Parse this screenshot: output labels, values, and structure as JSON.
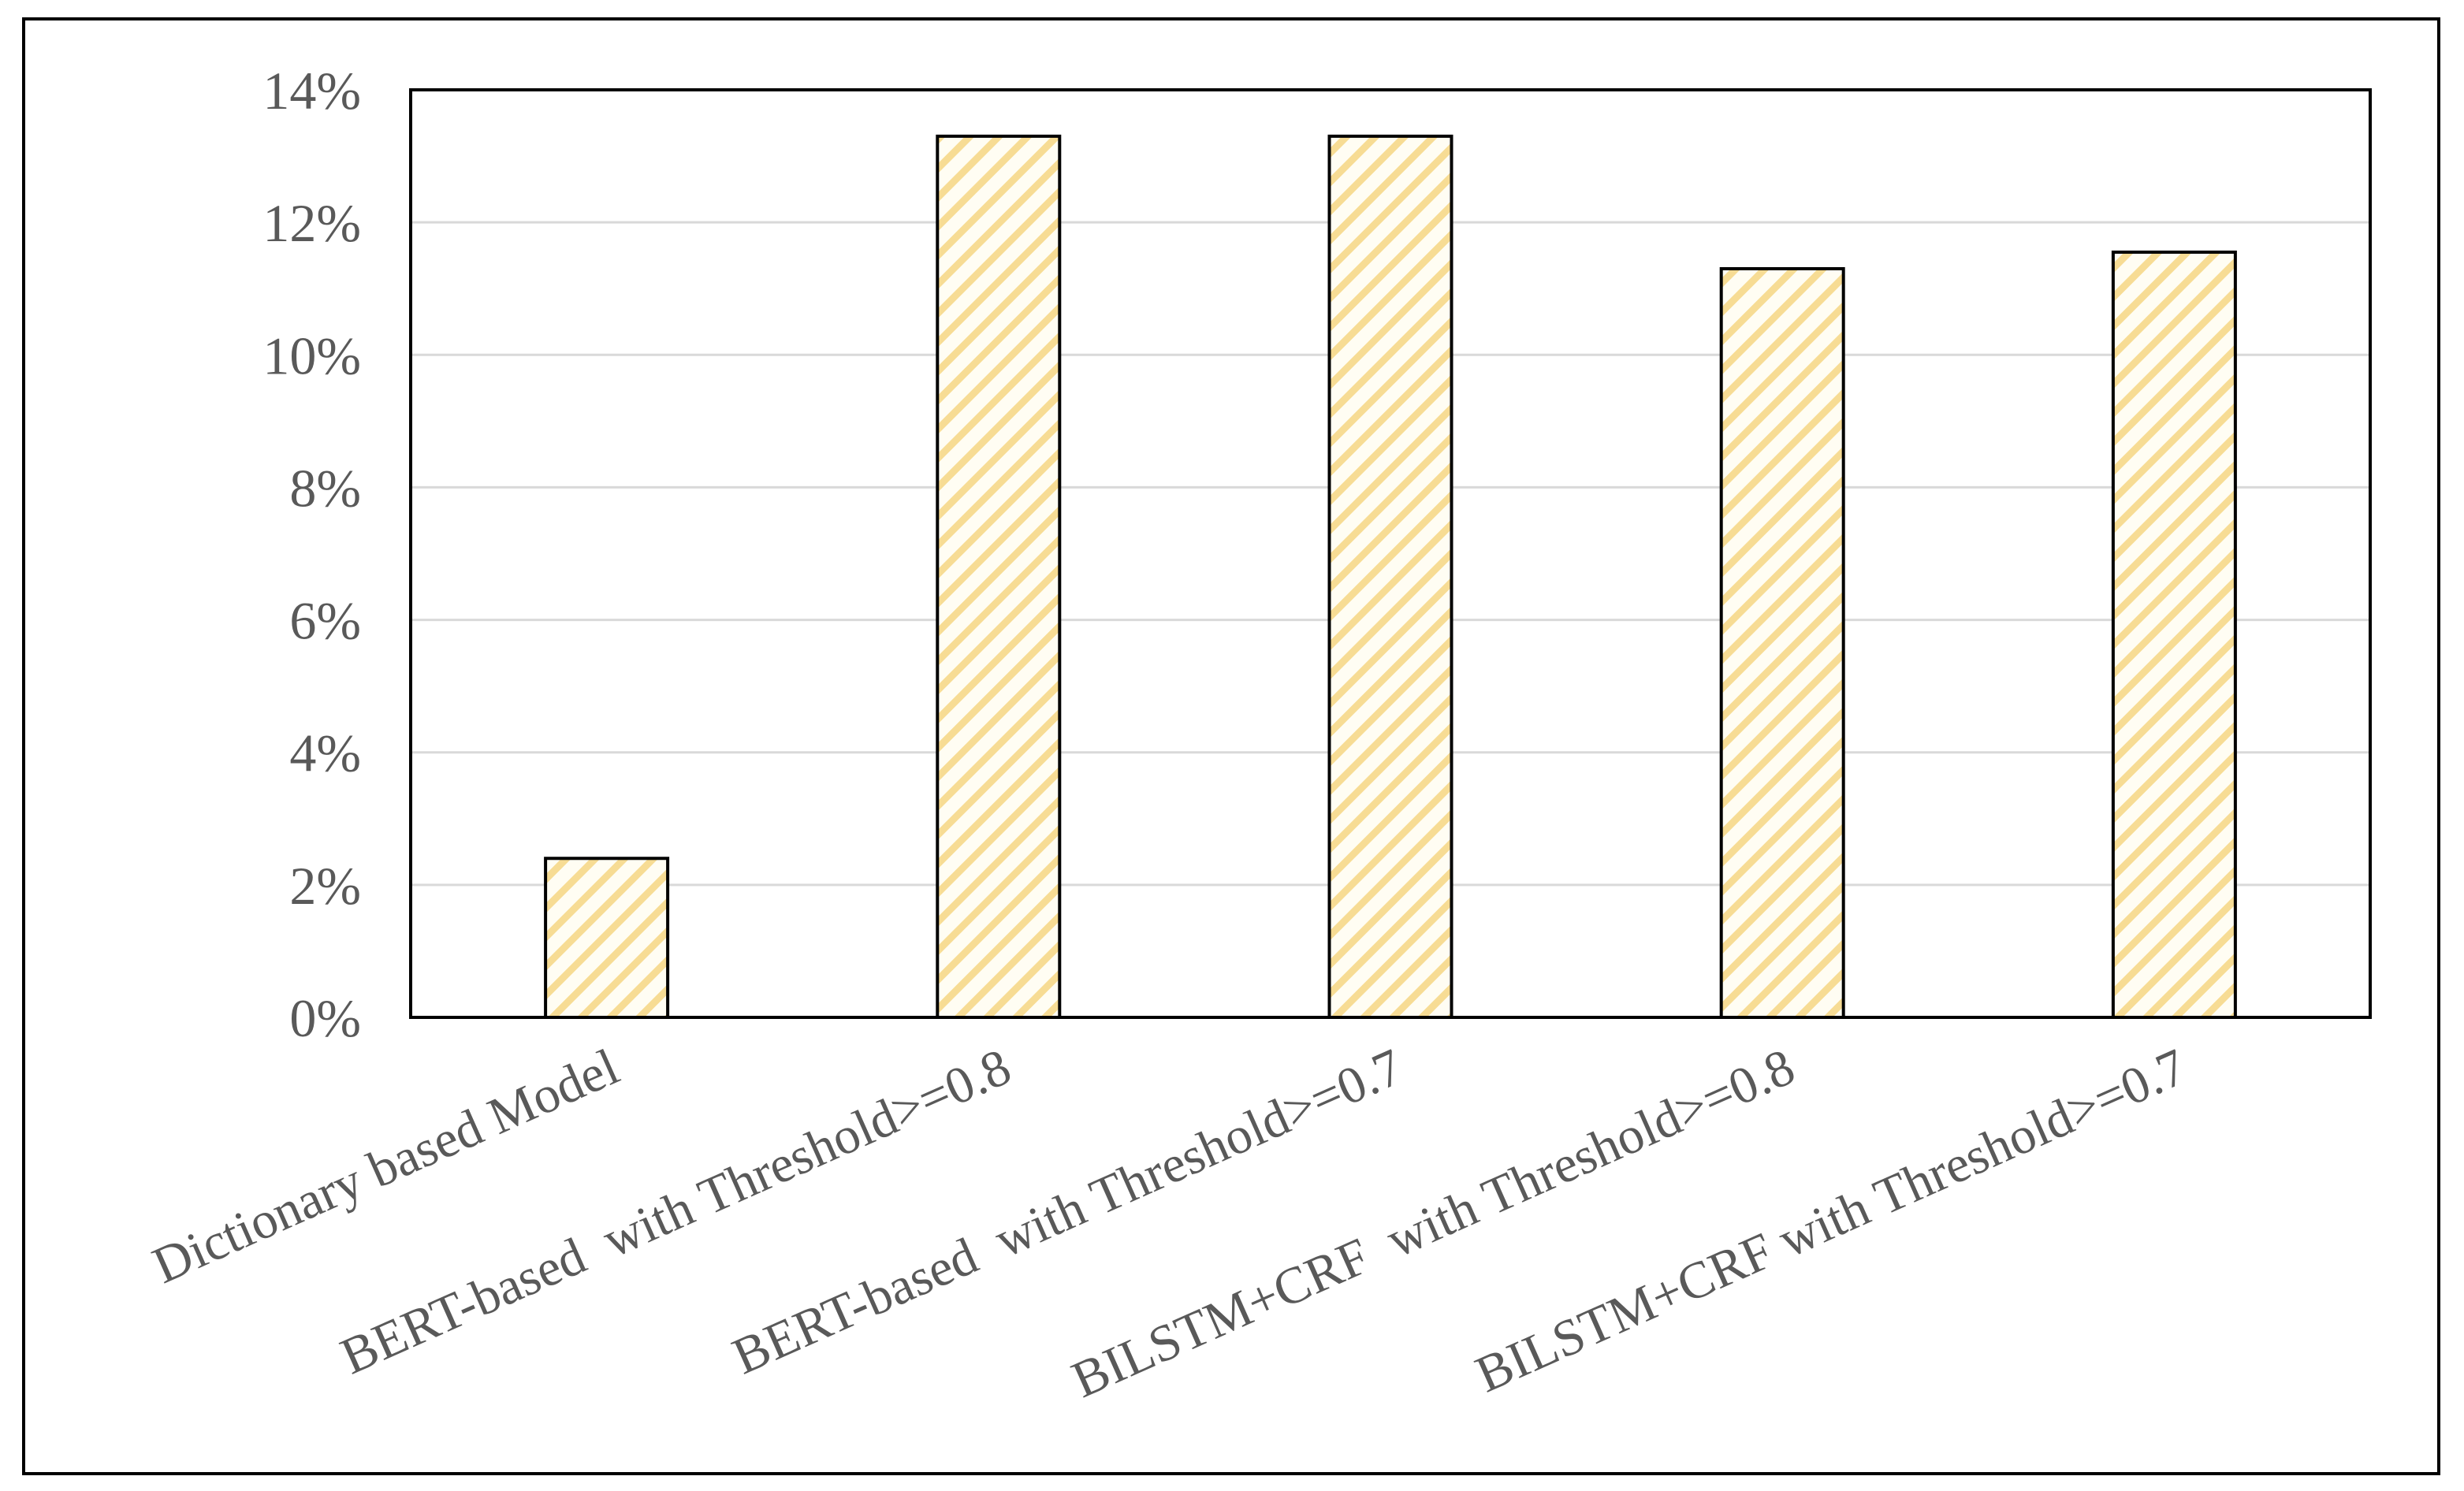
{
  "chart_data": {
    "type": "bar",
    "title": "",
    "xlabel": "",
    "ylabel": "",
    "categories": [
      "Dictionary based Model",
      "BERT-based  with Threshold>=0.8",
      "BERT-based  with Threshold>=0.7",
      "BILSTM+CRF  with Threshold>=0.8",
      "BILSTM+CRF with Threshold>=0.7"
    ],
    "values": [
      2.4,
      13.3,
      13.3,
      11.3,
      11.55
    ],
    "ylim": [
      0,
      14
    ],
    "yticks": [
      {
        "value": 0,
        "label": "0%"
      },
      {
        "value": 2,
        "label": "2%"
      },
      {
        "value": 4,
        "label": "4%"
      },
      {
        "value": 6,
        "label": "6%"
      },
      {
        "value": 8,
        "label": "8%"
      },
      {
        "value": 10,
        "label": "10%"
      },
      {
        "value": 12,
        "label": "12%"
      },
      {
        "value": 14,
        "label": "14%"
      }
    ],
    "grid": true,
    "legend": "none",
    "bar_fill": "hatched",
    "colors": {
      "hatch": "#f7dc94",
      "bar_background": "#fffdf3",
      "bar_outline": "#000000",
      "grid": "#d9d9d9",
      "text": "#595959"
    }
  }
}
